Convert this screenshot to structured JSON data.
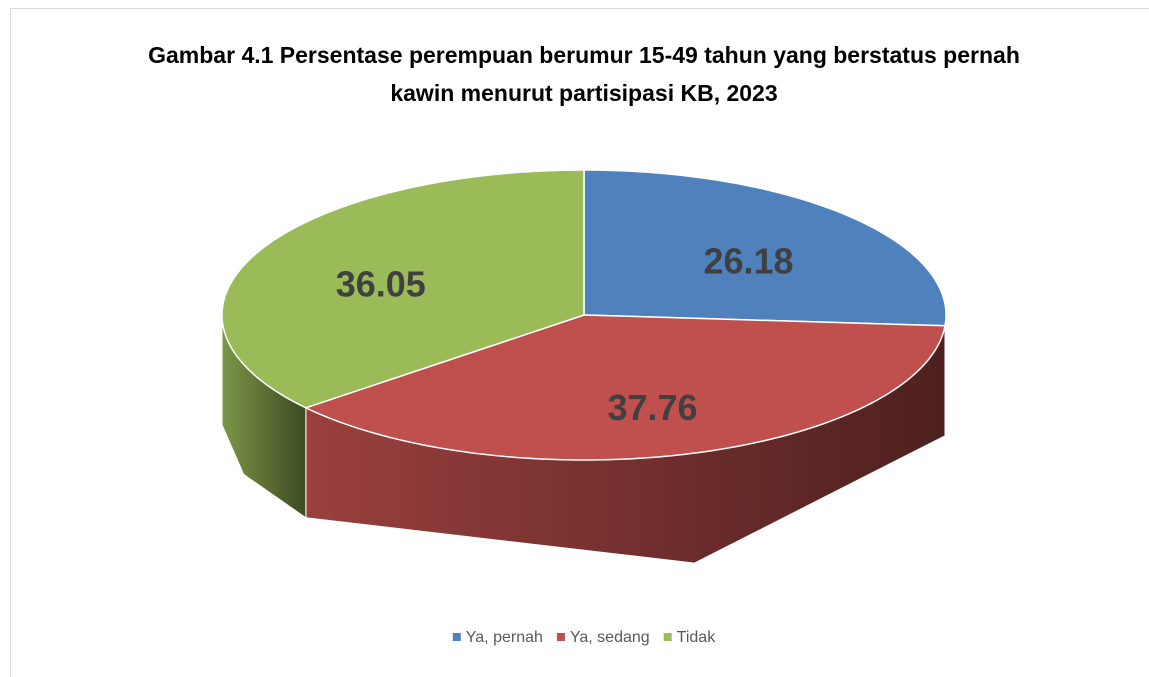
{
  "chart_data": {
    "type": "pie",
    "title": "Gambar 4.1 Persentase perempuan berumur 15-49 tahun yang berstatus pernah kawin menurut partisipasi KB, 2023",
    "categories": [
      "Ya, pernah",
      "Ya, sedang",
      "Tidak"
    ],
    "values": [
      26.18,
      37.76,
      36.05
    ],
    "colors": [
      "#4f81bd",
      "#c0504d",
      "#9bbb59"
    ],
    "legend": "bottom"
  }
}
